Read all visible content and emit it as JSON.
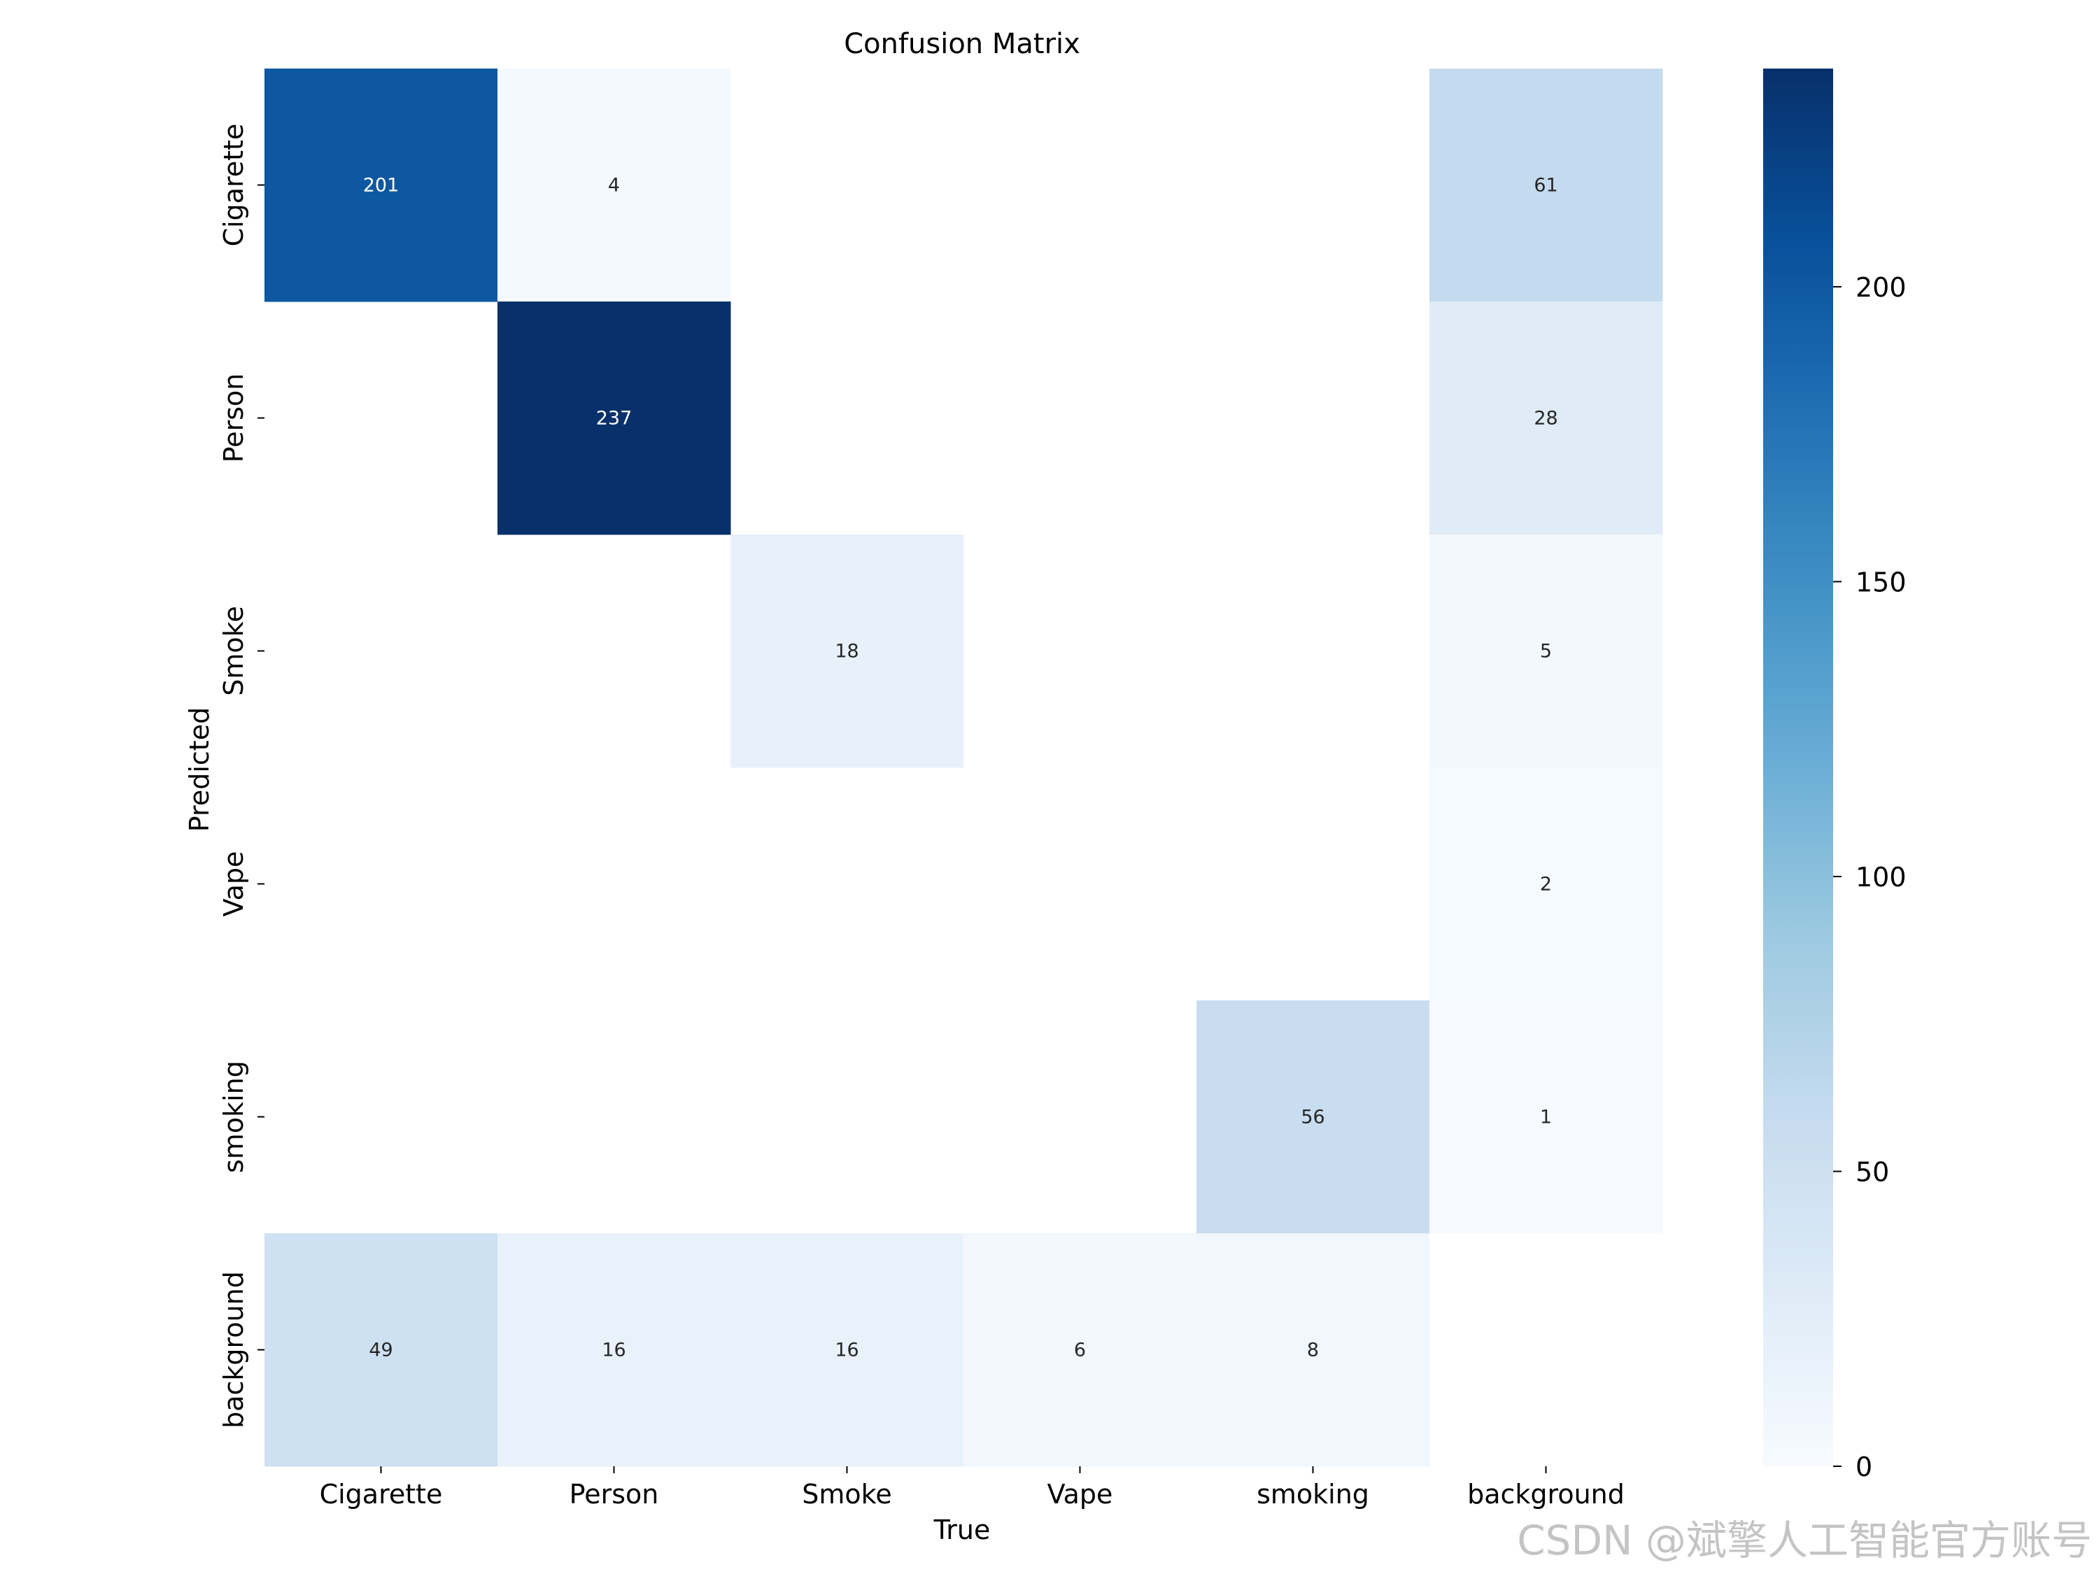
{
  "chart_data": {
    "type": "heatmap",
    "title": "Confusion Matrix",
    "xlabel": "True",
    "ylabel": "Predicted",
    "x_categories": [
      "Cigarette",
      "Person",
      "Smoke",
      "Vape",
      "smoking",
      "background"
    ],
    "y_categories": [
      "Cigarette",
      "Person",
      "Smoke",
      "Vape",
      "smoking",
      "background"
    ],
    "values": [
      [
        201,
        4,
        null,
        null,
        null,
        61
      ],
      [
        null,
        237,
        null,
        null,
        null,
        28
      ],
      [
        null,
        null,
        18,
        null,
        null,
        5
      ],
      [
        null,
        null,
        null,
        null,
        null,
        2
      ],
      [
        null,
        null,
        null,
        null,
        56,
        1
      ],
      [
        49,
        16,
        16,
        6,
        8,
        null
      ]
    ],
    "colormap": "Blues",
    "vmin": 0,
    "vmax": 237,
    "colorbar_ticks": [
      0,
      50,
      100,
      150,
      200
    ],
    "grid": false
  },
  "watermark": "CSDN @斌擎人工智能官方账号"
}
